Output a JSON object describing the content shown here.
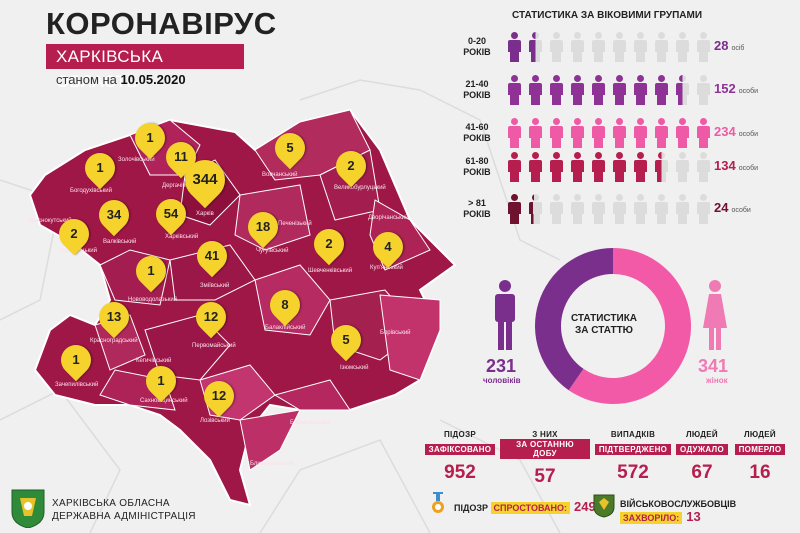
{
  "header": {
    "title": "КОРОНАВІРУС",
    "region": "ХАРКІВСЬКА ОБЛАСТЬ",
    "asof_prefix": "станом на",
    "asof_date": "10.05.2020"
  },
  "map": {
    "districts": [
      "Золочівський",
      "Богодухівський",
      "Дергачівський",
      "Вовчанський",
      "Великобурлуцький",
      "Краснокутський",
      "Валківський",
      "Харківський",
      "Харків",
      "Печенізький",
      "Дворічанський",
      "Коломацький",
      "Чугуївський",
      "Шевченківський",
      "Куп'янський",
      "Нововодолазький",
      "Зміївський",
      "Балаклійський",
      "Борівський",
      "Красноградський",
      "Первомайський",
      "Ізюмський",
      "Кегичівський",
      "Зачепилівський",
      "Сахновщинський",
      "Лозівський",
      "Барвінківський",
      "Близнюківський"
    ],
    "pins": [
      "1",
      "1",
      "11",
      "344",
      "5",
      "2",
      "34",
      "54",
      "2",
      "18",
      "2",
      "4",
      "1",
      "41",
      "8",
      "13",
      "12",
      "5",
      "1",
      "1",
      "12"
    ]
  },
  "age": {
    "title": "СТАТИСТИКА ЗА ВІКОВИМИ ГРУПАМИ",
    "groups": [
      {
        "label1": "0-20",
        "label2": "РОКІВ",
        "count": "28",
        "unit": "осіб",
        "filled": 1.5,
        "color": "#7a2f8c"
      },
      {
        "label1": "21-40",
        "label2": "РОКІВ",
        "count": "152",
        "unit": "особи",
        "filled": 8.5,
        "color": "#8e3296"
      },
      {
        "label1": "41-60",
        "label2": "РОКІВ",
        "count": "234",
        "unit": "особи",
        "filled": 10,
        "color": "#ee5aa5"
      },
      {
        "label1": "61-80",
        "label2": "РОКІВ",
        "count": "134",
        "unit": "особи",
        "filled": 7.5,
        "color": "#b51e4f"
      },
      {
        "label1": "> 81",
        "label2": "РОКІВ",
        "count": "24",
        "unit": "особи",
        "filled": 1.3,
        "color": "#6e1230"
      }
    ]
  },
  "gender": {
    "title1": "СТАТИСТИКА",
    "title2": "ЗА СТАТТЮ",
    "male_count": "231",
    "male_label": "чоловіків",
    "female_count": "341",
    "female_label": "жінок",
    "male_color": "#7a2f8c",
    "female_color": "#f25aa8",
    "male": 231,
    "female": 341
  },
  "stats": [
    {
      "l1": "ПІДОЗР",
      "l2": "ЗАФІКСОВАНО",
      "num": "952"
    },
    {
      "l1": "З НИХ",
      "l2": "ЗА ОСТАННЮ ДОБУ",
      "num": "57"
    },
    {
      "l1": "ВИПАДКІВ",
      "l2": "ПІДТВЕРДЖЕНО",
      "num": "572"
    },
    {
      "l1": "ЛЮДЕЙ",
      "l2": "ОДУЖАЛО",
      "num": "67"
    },
    {
      "l1": "ЛЮДЕЙ",
      "l2": "ПОМЕРЛО",
      "num": "16"
    }
  ],
  "footer": {
    "admin_line1": "ХАРКІВСЬКА ОБЛАСНА",
    "admin_line2": "ДЕРЖАВНА АДМІНІСТРАЦІЯ",
    "refuted_l1": "ПІДОЗР",
    "refuted_l2": "СПРОСТОВАНО:",
    "refuted_num": "249",
    "military_l1": "ВІЙСЬКОВОСЛУЖБОВЦІВ",
    "military_l2": "ЗАХВОРІЛО:",
    "military_num": "13"
  }
}
